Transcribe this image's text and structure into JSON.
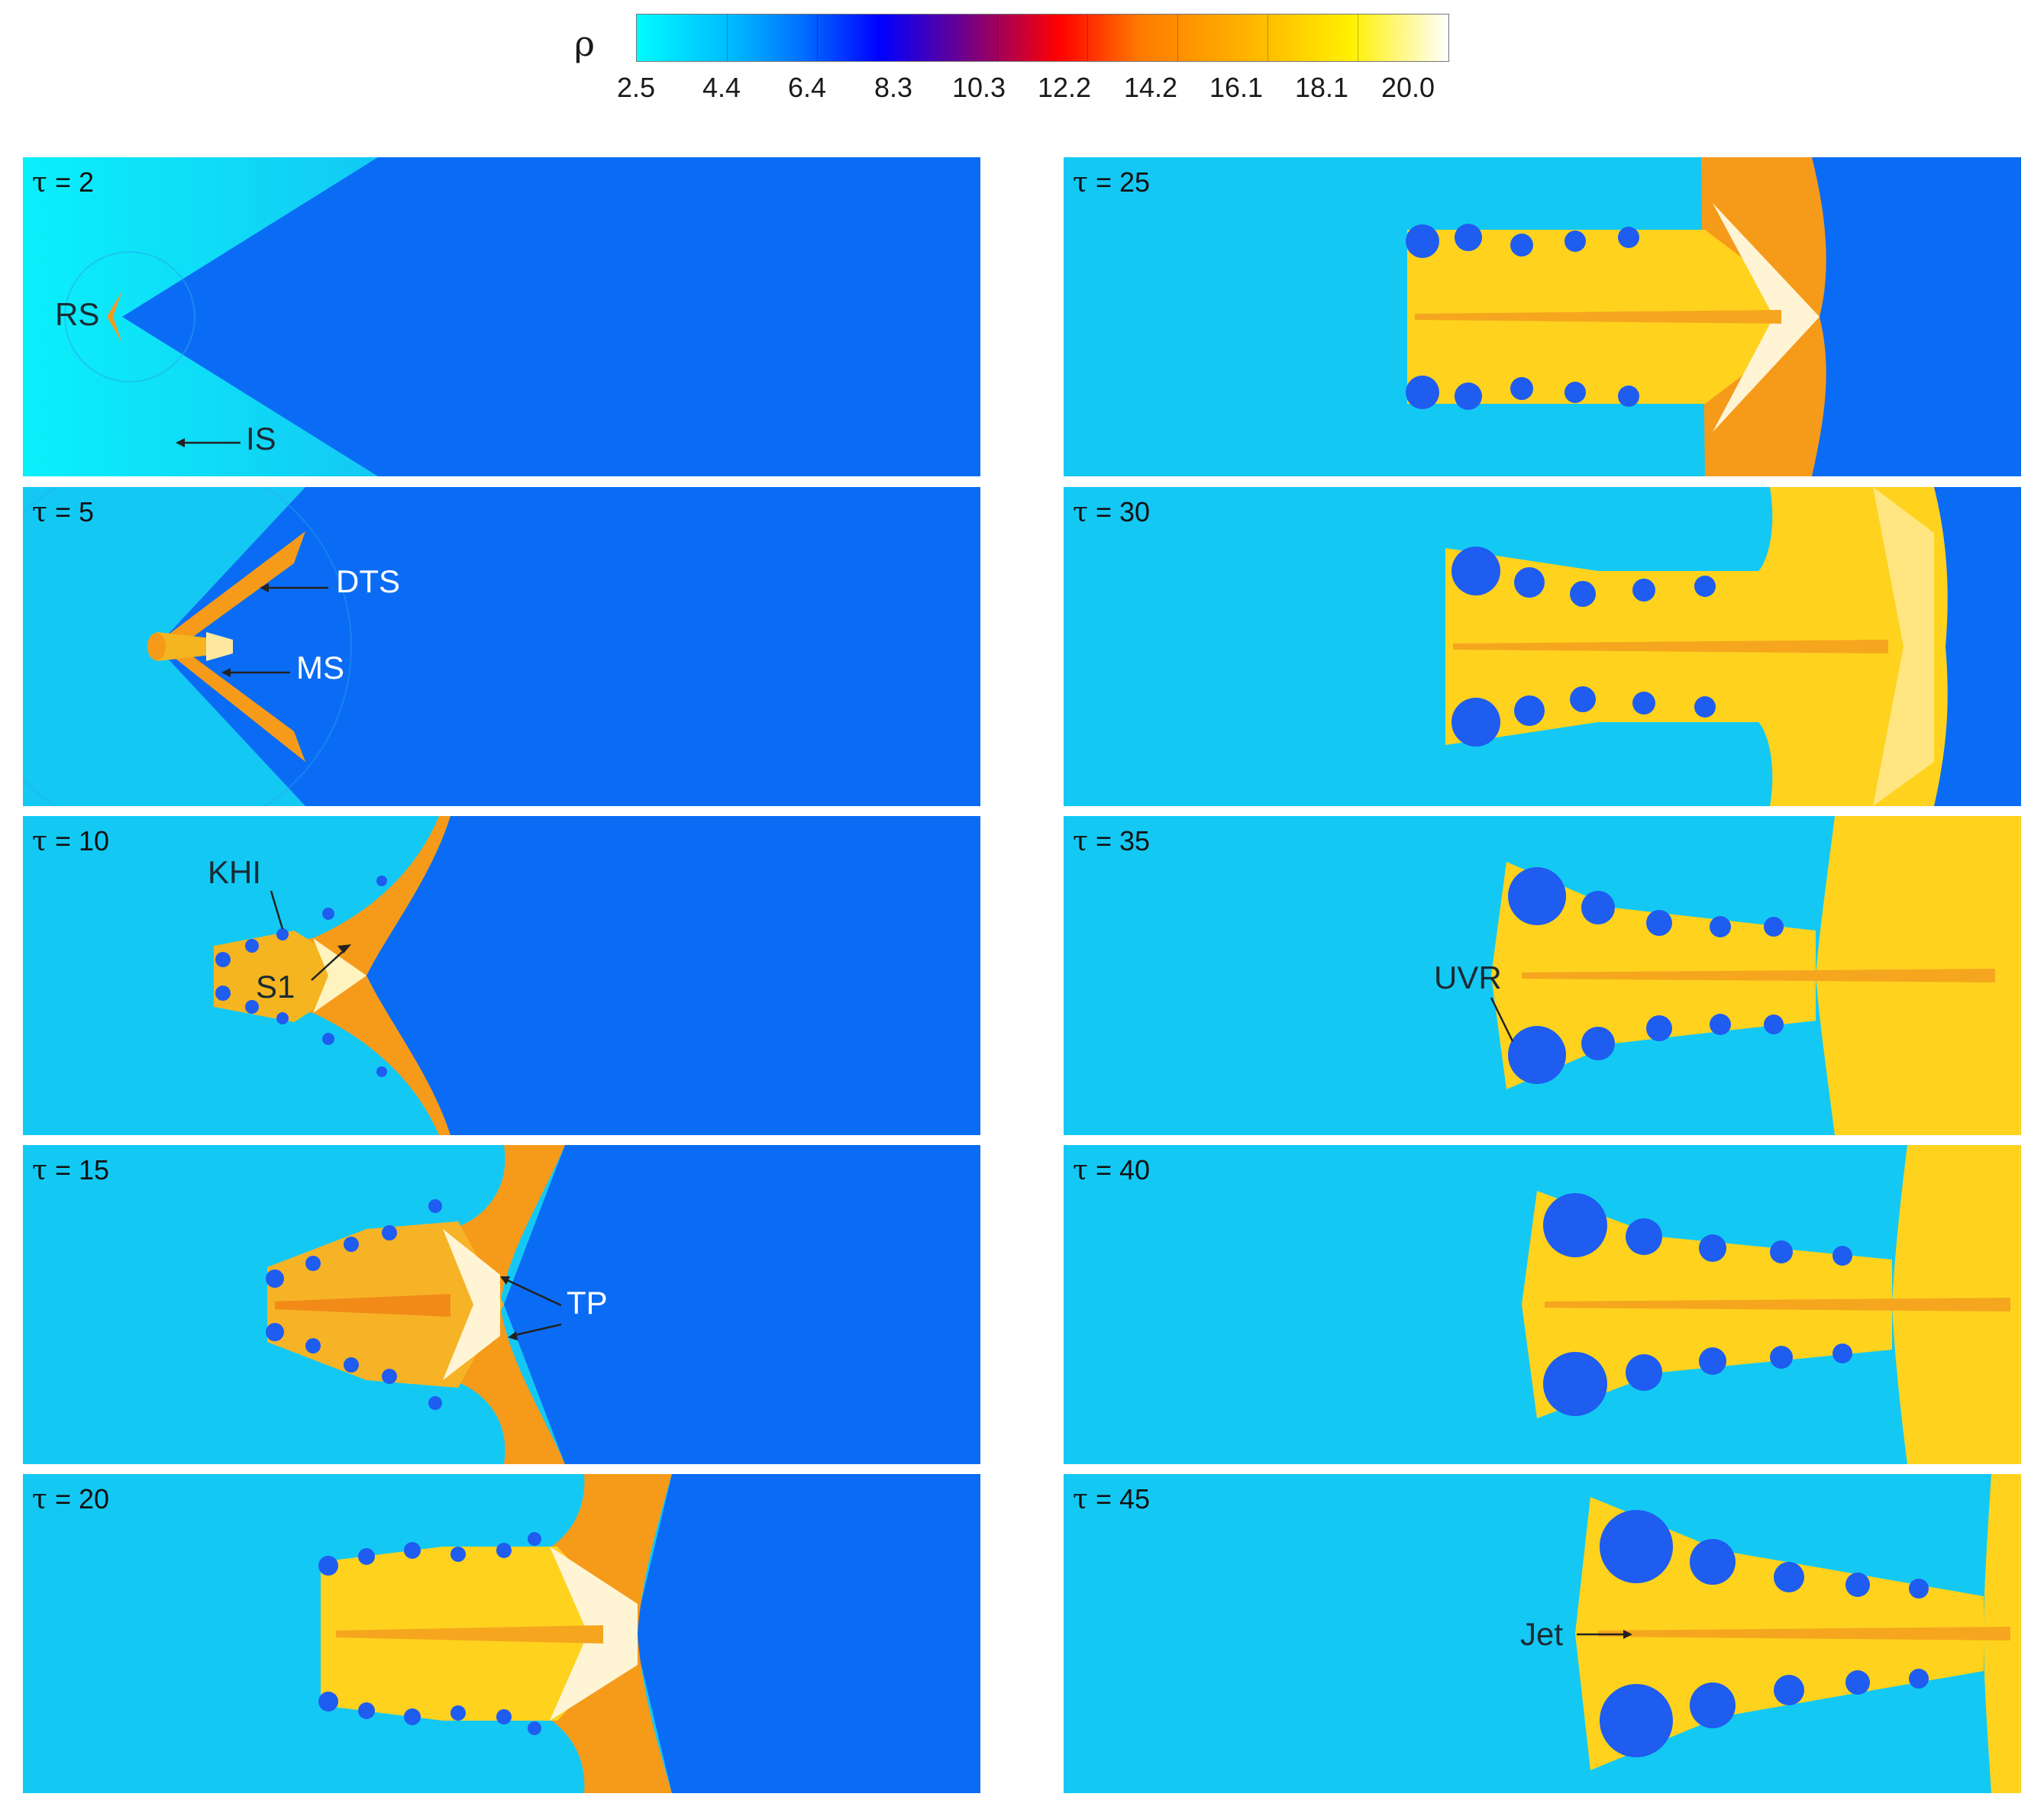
{
  "colorbar": {
    "symbol": "ρ",
    "ticks": [
      "2.5",
      "4.4",
      "6.4",
      "8.3",
      "10.3",
      "12.2",
      "14.2",
      "16.1",
      "18.1",
      "20.0"
    ]
  },
  "panels": [
    {
      "tau_symbol": "τ",
      "tau_value": "= 2",
      "annotations": [
        "RS",
        "IS"
      ]
    },
    {
      "tau_symbol": "τ",
      "tau_value": "= 5",
      "annotations": [
        "DTS",
        "MS"
      ]
    },
    {
      "tau_symbol": "τ",
      "tau_value": "= 10",
      "annotations": [
        "KHI",
        "S1"
      ]
    },
    {
      "tau_symbol": "τ",
      "tau_value": "= 15",
      "annotations": [
        "TP"
      ]
    },
    {
      "tau_symbol": "τ",
      "tau_value": "= 20",
      "annotations": []
    },
    {
      "tau_symbol": "τ",
      "tau_value": "= 25",
      "annotations": []
    },
    {
      "tau_symbol": "τ",
      "tau_value": "= 30",
      "annotations": []
    },
    {
      "tau_symbol": "τ",
      "tau_value": "= 35",
      "annotations": [
        "UVR"
      ]
    },
    {
      "tau_symbol": "τ",
      "tau_value": "= 40",
      "annotations": []
    },
    {
      "tau_symbol": "τ",
      "tau_value": "= 45",
      "annotations": [
        "Jet"
      ]
    }
  ],
  "colors": {
    "background_fluid": "#0a6cf4",
    "shocked_gas": "#12d0f6",
    "jet_yellow": "#ffd21e",
    "jet_orange": "#f6a21c",
    "vortex_blue": "#1f5cf0"
  }
}
